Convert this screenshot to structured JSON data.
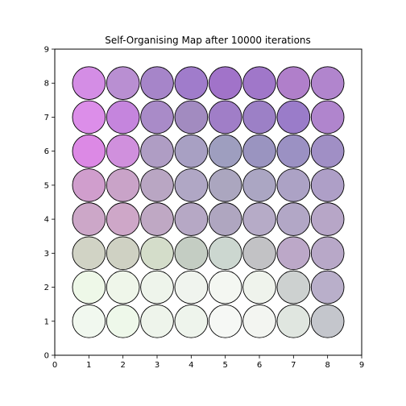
{
  "chart_data": {
    "type": "scatter",
    "title": "Self-Organising Map after 10000 iterations",
    "xlabel": "",
    "ylabel": "",
    "xlim": [
      0,
      9
    ],
    "ylim": [
      0,
      9
    ],
    "xticks": [
      "0",
      "1",
      "2",
      "3",
      "4",
      "5",
      "6",
      "7",
      "8",
      "9"
    ],
    "yticks": [
      "0",
      "1",
      "2",
      "3",
      "4",
      "5",
      "6",
      "7",
      "8",
      "9"
    ],
    "grid": false,
    "marker_radius_data_units": 0.5,
    "marker_edge_color": "#000000",
    "cells": [
      {
        "x": 1,
        "y": 8,
        "color": "#d48de5"
      },
      {
        "x": 2,
        "y": 8,
        "color": "#b98fd2"
      },
      {
        "x": 3,
        "y": 8,
        "color": "#a685c9"
      },
      {
        "x": 4,
        "y": 8,
        "color": "#a07ccb"
      },
      {
        "x": 5,
        "y": 8,
        "color": "#a173c9"
      },
      {
        "x": 6,
        "y": 8,
        "color": "#a077c9"
      },
      {
        "x": 7,
        "y": 8,
        "color": "#b07fca"
      },
      {
        "x": 8,
        "y": 8,
        "color": "#b185cd"
      },
      {
        "x": 1,
        "y": 7,
        "color": "#dc8ee9"
      },
      {
        "x": 2,
        "y": 7,
        "color": "#c585dd"
      },
      {
        "x": 3,
        "y": 7,
        "color": "#a98bc8"
      },
      {
        "x": 4,
        "y": 7,
        "color": "#a28bc0"
      },
      {
        "x": 5,
        "y": 7,
        "color": "#a07ec7"
      },
      {
        "x": 6,
        "y": 7,
        "color": "#9c80c6"
      },
      {
        "x": 7,
        "y": 7,
        "color": "#9a7cc9"
      },
      {
        "x": 8,
        "y": 7,
        "color": "#b085cd"
      },
      {
        "x": 1,
        "y": 6,
        "color": "#dc89e5"
      },
      {
        "x": 2,
        "y": 6,
        "color": "#d090dd"
      },
      {
        "x": 3,
        "y": 6,
        "color": "#af9dc4"
      },
      {
        "x": 4,
        "y": 6,
        "color": "#a8a0c3"
      },
      {
        "x": 5,
        "y": 6,
        "color": "#9e9ebf"
      },
      {
        "x": 6,
        "y": 6,
        "color": "#9a94c0"
      },
      {
        "x": 7,
        "y": 6,
        "color": "#9b91c3"
      },
      {
        "x": 8,
        "y": 6,
        "color": "#a08fc5"
      },
      {
        "x": 1,
        "y": 5,
        "color": "#d09ecd"
      },
      {
        "x": 2,
        "y": 5,
        "color": "#c9a3c8"
      },
      {
        "x": 3,
        "y": 5,
        "color": "#b9a6c3"
      },
      {
        "x": 4,
        "y": 5,
        "color": "#b0a7c5"
      },
      {
        "x": 5,
        "y": 5,
        "color": "#aba6bf"
      },
      {
        "x": 6,
        "y": 5,
        "color": "#aba6c3"
      },
      {
        "x": 7,
        "y": 5,
        "color": "#aca2c5"
      },
      {
        "x": 8,
        "y": 5,
        "color": "#ae9fc7"
      },
      {
        "x": 1,
        "y": 4,
        "color": "#cca7c8"
      },
      {
        "x": 2,
        "y": 4,
        "color": "#cea7c8"
      },
      {
        "x": 3,
        "y": 4,
        "color": "#bfa8c4"
      },
      {
        "x": 4,
        "y": 4,
        "color": "#b6a8c5"
      },
      {
        "x": 5,
        "y": 4,
        "color": "#afa6c0"
      },
      {
        "x": 6,
        "y": 4,
        "color": "#b6abc7"
      },
      {
        "x": 7,
        "y": 4,
        "color": "#b2a7c6"
      },
      {
        "x": 8,
        "y": 4,
        "color": "#b7a6c7"
      },
      {
        "x": 1,
        "y": 3,
        "color": "#d1d3c5"
      },
      {
        "x": 2,
        "y": 3,
        "color": "#cfd1c3"
      },
      {
        "x": 3,
        "y": 3,
        "color": "#d4ddca"
      },
      {
        "x": 4,
        "y": 3,
        "color": "#c4cdc3"
      },
      {
        "x": 5,
        "y": 3,
        "color": "#ccd7d0"
      },
      {
        "x": 6,
        "y": 3,
        "color": "#c2c2c5"
      },
      {
        "x": 7,
        "y": 3,
        "color": "#bca8c8"
      },
      {
        "x": 8,
        "y": 3,
        "color": "#b8a8c8"
      },
      {
        "x": 1,
        "y": 2,
        "color": "#eef8e8"
      },
      {
        "x": 2,
        "y": 2,
        "color": "#eff6ea"
      },
      {
        "x": 3,
        "y": 2,
        "color": "#eef4eb"
      },
      {
        "x": 4,
        "y": 2,
        "color": "#f0f4ee"
      },
      {
        "x": 5,
        "y": 2,
        "color": "#f4f7f2"
      },
      {
        "x": 6,
        "y": 2,
        "color": "#eff3ec"
      },
      {
        "x": 7,
        "y": 2,
        "color": "#cdd1d0"
      },
      {
        "x": 8,
        "y": 2,
        "color": "#b9afca"
      },
      {
        "x": 1,
        "y": 1,
        "color": "#f1f8ef"
      },
      {
        "x": 2,
        "y": 1,
        "color": "#eef8ea"
      },
      {
        "x": 3,
        "y": 1,
        "color": "#eef4eb"
      },
      {
        "x": 4,
        "y": 1,
        "color": "#eef4ec"
      },
      {
        "x": 5,
        "y": 1,
        "color": "#f6f8f5"
      },
      {
        "x": 6,
        "y": 1,
        "color": "#f3f5f1"
      },
      {
        "x": 7,
        "y": 1,
        "color": "#e0e6e0"
      },
      {
        "x": 8,
        "y": 1,
        "color": "#c4c6cc"
      }
    ]
  }
}
